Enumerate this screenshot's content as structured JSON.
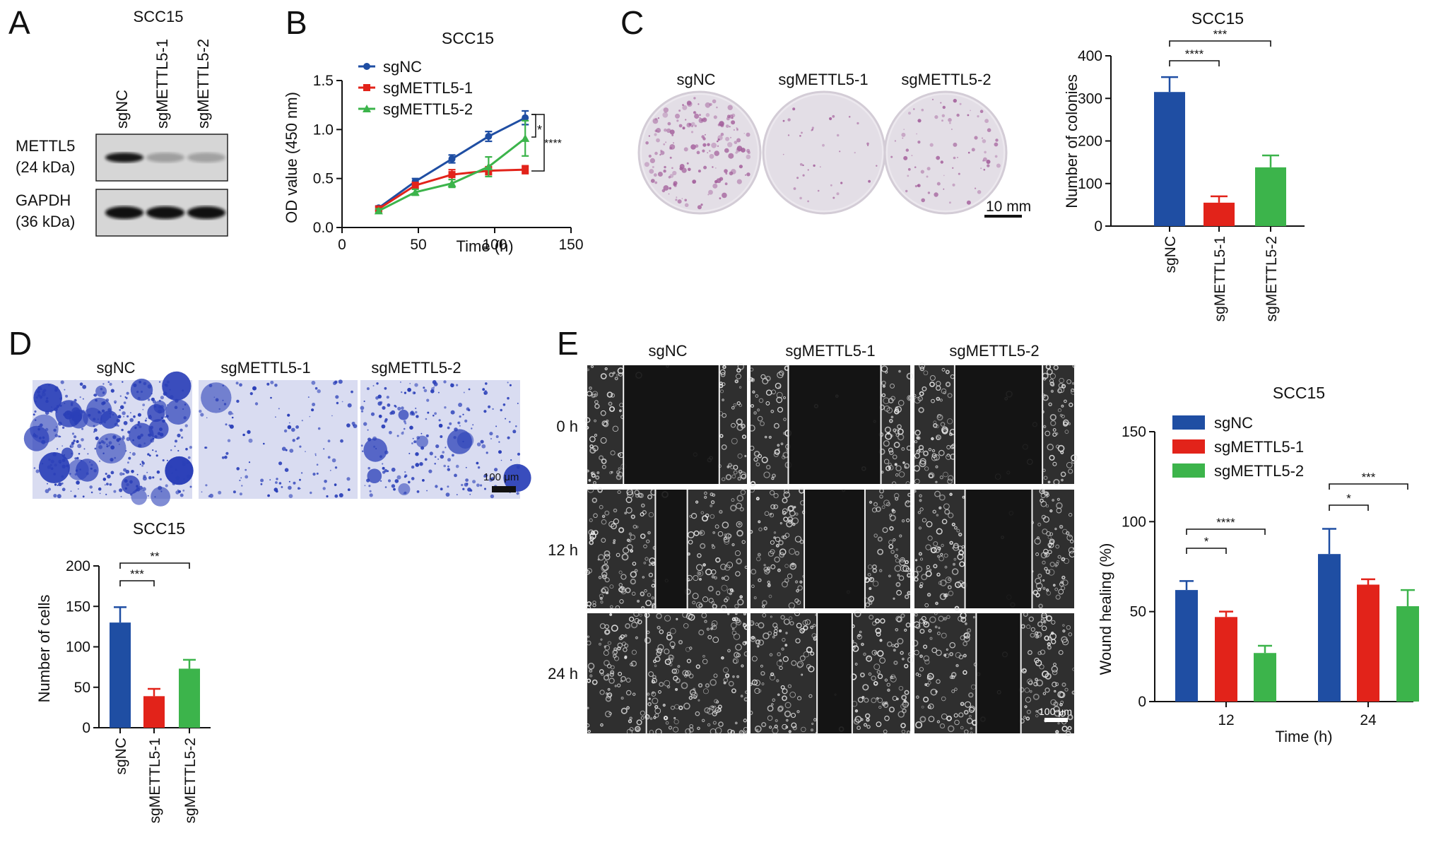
{
  "colors": {
    "sgNC": "#1f4ea3",
    "sgMETTL5_1": "#e2231a",
    "sgMETTL5_2": "#3cb44b",
    "stain_bg": "#d9dcf1",
    "stain_blue": "#2a3fb8",
    "colony": "#a25d9a"
  },
  "panels": {
    "A": {
      "letter": "A",
      "title": "SCC15",
      "lanes": [
        "sgNC",
        "sgMETTL5-1",
        "sgMETTL5-2"
      ],
      "blots": [
        {
          "protein": "METTL5",
          "size": "(24 kDa)",
          "band_intensity": [
            0.95,
            0.18,
            0.16
          ]
        },
        {
          "protein": "GAPDH",
          "size": "(36 kDa)",
          "band_intensity": [
            1.0,
            1.0,
            1.0
          ]
        }
      ]
    },
    "B": {
      "letter": "B",
      "sig_low": "*",
      "sig_high": "****"
    },
    "C": {
      "letter": "C",
      "images": [
        "sgNC",
        "sgMETTL5-1",
        "sgMETTL5-2"
      ],
      "scale_bar": "10 mm"
    },
    "D": {
      "letter": "D",
      "images": [
        "sgNC",
        "sgMETTL5-1",
        "sgMETTL5-2"
      ],
      "scale_bar": "100 μm"
    },
    "E": {
      "letter": "E",
      "columns": [
        "sgNC",
        "sgMETTL5-1",
        "sgMETTL5-2"
      ],
      "rows": [
        "0 h",
        "12 h",
        "24 h"
      ],
      "scale_bar": "100 μm",
      "gap_fraction": [
        [
          0.6,
          0.58,
          0.55
        ],
        [
          0.2,
          0.38,
          0.42
        ],
        [
          0.0,
          0.22,
          0.28
        ]
      ]
    }
  },
  "chart_data": [
    {
      "panel": "B",
      "type": "line",
      "title": "SCC15",
      "xlabel": "Time (h)",
      "ylabel": "OD value (450 nm)",
      "xlim": [
        0,
        150
      ],
      "ylim": [
        0,
        1.5
      ],
      "xticks": [
        0,
        50,
        100,
        150
      ],
      "yticks": [
        0.0,
        0.5,
        1.0,
        1.5
      ],
      "xtick_labels": [
        "0",
        "50",
        "100",
        "150"
      ],
      "ytick_labels": [
        "0.0",
        "0.5",
        "1.0",
        "1.5"
      ],
      "legend": "top-left",
      "x": [
        24,
        48,
        72,
        96,
        120
      ],
      "series": [
        {
          "name": "sgNC",
          "values": [
            0.2,
            0.47,
            0.7,
            0.93,
            1.12
          ],
          "errors": [
            0.02,
            0.03,
            0.04,
            0.05,
            0.07
          ]
        },
        {
          "name": "sgMETTL5-1",
          "values": [
            0.19,
            0.43,
            0.54,
            0.58,
            0.59
          ],
          "errors": [
            0.02,
            0.03,
            0.05,
            0.04,
            0.04
          ]
        },
        {
          "name": "sgMETTL5-2",
          "values": [
            0.17,
            0.36,
            0.45,
            0.62,
            0.91
          ],
          "errors": [
            0.02,
            0.03,
            0.04,
            0.1,
            0.18
          ]
        }
      ]
    },
    {
      "panel": "C",
      "type": "bar",
      "title": "SCC15",
      "ylabel": "Number of colonies",
      "ylim": [
        0,
        400
      ],
      "yticks": [
        0,
        100,
        200,
        300,
        400
      ],
      "ytick_labels": [
        "0",
        "100",
        "200",
        "300",
        "400"
      ],
      "categories": [
        "sgNC",
        "sgMETTL5-1",
        "sgMETTL5-2"
      ],
      "values": [
        315,
        55,
        138
      ],
      "errors": [
        35,
        15,
        28
      ],
      "significance": [
        {
          "from": 0,
          "to": 1,
          "label": "****"
        },
        {
          "from": 0,
          "to": 2,
          "label": "***"
        }
      ]
    },
    {
      "panel": "D",
      "type": "bar",
      "title": "SCC15",
      "ylabel": "Number of cells",
      "ylim": [
        0,
        200
      ],
      "yticks": [
        0,
        50,
        100,
        150,
        200
      ],
      "ytick_labels": [
        "0",
        "50",
        "100",
        "150",
        "200"
      ],
      "categories": [
        "sgNC",
        "sgMETTL5-1",
        "sgMETTL5-2"
      ],
      "values": [
        130,
        39,
        73
      ],
      "errors": [
        19,
        9,
        11
      ],
      "significance": [
        {
          "from": 0,
          "to": 1,
          "label": "***"
        },
        {
          "from": 0,
          "to": 2,
          "label": "**"
        }
      ]
    },
    {
      "panel": "E",
      "type": "bar",
      "title": "SCC15",
      "xlabel": "Time (h)",
      "ylabel": "Wound healing (%)",
      "ylim": [
        0,
        150
      ],
      "yticks": [
        0,
        50,
        100,
        150
      ],
      "ytick_labels": [
        "0",
        "50",
        "100",
        "150"
      ],
      "categories": [
        "12",
        "24"
      ],
      "legend": "top-left",
      "series": [
        {
          "name": "sgNC",
          "values": [
            62,
            82
          ],
          "errors": [
            5,
            14
          ]
        },
        {
          "name": "sgMETTL5-1",
          "values": [
            47,
            65
          ],
          "errors": [
            3,
            3
          ]
        },
        {
          "name": "sgMETTL5-2",
          "values": [
            27,
            53
          ],
          "errors": [
            4,
            9
          ]
        }
      ],
      "significance": [
        {
          "group": 0,
          "from": 0,
          "to": 1,
          "label": "*"
        },
        {
          "group": 0,
          "from": 0,
          "to": 2,
          "label": "****"
        },
        {
          "group": 1,
          "from": 0,
          "to": 1,
          "label": "*"
        },
        {
          "group": 1,
          "from": 0,
          "to": 2,
          "label": "***"
        }
      ]
    }
  ]
}
